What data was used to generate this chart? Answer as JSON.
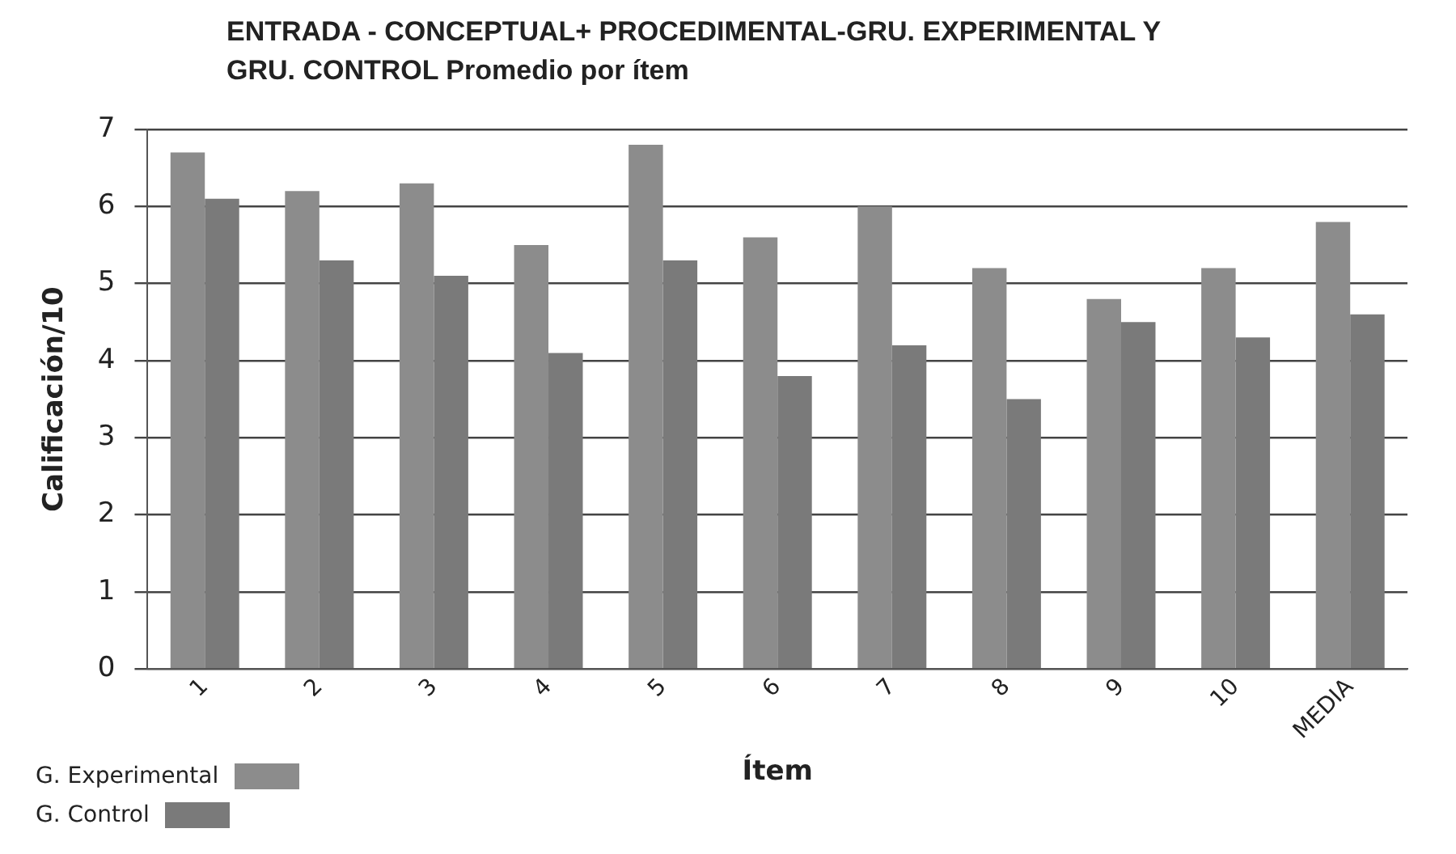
{
  "chart_data": {
    "type": "bar",
    "title": "ENTRADA - CONCEPTUAL+ PROCEDIMENTAL-GRU. EXPERIMENTAL Y GRU. CONTROL Promedio por ítem",
    "xlabel": "Ítem",
    "ylabel": "Calificación/10",
    "categories": [
      "1",
      "2",
      "3",
      "4",
      "5",
      "6",
      "7",
      "8",
      "9",
      "10",
      "MEDIA"
    ],
    "series": [
      {
        "name": "G. Experimental",
        "color": "#8c8c8c",
        "values": [
          6.7,
          6.2,
          6.3,
          5.5,
          6.8,
          5.6,
          6.0,
          5.2,
          4.8,
          5.2,
          5.8
        ]
      },
      {
        "name": "G. Control",
        "color": "#7a7a7a",
        "values": [
          6.1,
          5.3,
          5.1,
          4.1,
          5.3,
          3.8,
          4.2,
          3.5,
          4.5,
          4.3,
          4.6
        ]
      }
    ],
    "ylim": [
      0,
      7
    ],
    "yticks": [
      0,
      1,
      2,
      3,
      4,
      5,
      6,
      7
    ],
    "grid": "y",
    "legend": "bottom left"
  }
}
